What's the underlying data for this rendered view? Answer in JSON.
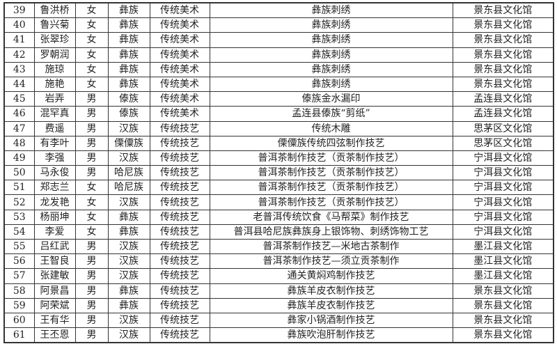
{
  "table": {
    "rows": [
      [
        "39",
        "鲁洪桥",
        "女",
        "彝族",
        "传统美术",
        "彝族刺绣",
        "景东县文化馆"
      ],
      [
        "40",
        "鲁兴菊",
        "女",
        "彝族",
        "传统美术",
        "彝族刺绣",
        "景东县文化馆"
      ],
      [
        "41",
        "张翠珍",
        "女",
        "彝族",
        "传统美术",
        "彝族刺绣",
        "景东县文化馆"
      ],
      [
        "42",
        "罗朝润",
        "女",
        "彝族",
        "传统美术",
        "彝族刺绣",
        "景东县文化馆"
      ],
      [
        "43",
        "施琼",
        "女",
        "彝族",
        "传统美术",
        "彝族刺绣",
        "景东县文化馆"
      ],
      [
        "44",
        "施艳",
        "女",
        "彝族",
        "传统美术",
        "彝族刺绣",
        "景东县文化馆"
      ],
      [
        "45",
        "岩弄",
        "男",
        "傣族",
        "传统美术",
        "傣族金水漏印",
        "孟连县文化馆"
      ],
      [
        "46",
        "混罕真",
        "男",
        "傣族",
        "传统美术",
        "孟连县傣族“剪纸”",
        "孟连县文化馆"
      ],
      [
        "47",
        "费遥",
        "男",
        "汉族",
        "传统技艺",
        "传统木雕",
        "思茅区文化馆"
      ],
      [
        "48",
        "有李叶",
        "男",
        "傈僳族",
        "传统技艺",
        "傈僳族传统四弦制作技艺",
        "思茅区文化馆"
      ],
      [
        "49",
        "李强",
        "男",
        "汉族",
        "传统技艺",
        "普洱茶制作技艺（贡茶制作技艺）",
        "宁洱县文化馆"
      ],
      [
        "50",
        "马永俊",
        "男",
        "哈尼族",
        "传统技艺",
        "普洱茶制作技艺（贡茶制作技艺）",
        "宁洱县文化馆"
      ],
      [
        "51",
        "郑志兰",
        "女",
        "哈尼族",
        "传统技艺",
        "普洱茶制作技艺（贡茶制作技艺）",
        "宁洱县文化馆"
      ],
      [
        "52",
        "龙发艳",
        "女",
        "汉族",
        "传统技艺",
        "普洱茶制作技艺（贡茶制作技艺）",
        "宁洱县文化馆"
      ],
      [
        "53",
        "杨丽坤",
        "女",
        "彝族",
        "传统技艺",
        "老普洱传统饮食《马帮菜》制作技艺",
        "宁洱县文化馆"
      ],
      [
        "54",
        "李爱",
        "女",
        "彝族",
        "传统技艺",
        "普洱县哈尼族彝族身上银饰物、刺绣饰物工艺",
        "宁洱县文化馆"
      ],
      [
        "55",
        "吕红武",
        "男",
        "汉族",
        "传统技艺",
        "普洱茶制作技艺—米地古茶制作",
        "墨江县文化馆"
      ],
      [
        "56",
        "王智良",
        "男",
        "汉族",
        "传统技艺",
        "普洱茶制作技艺—须立贡茶制作",
        "墨江县文化馆"
      ],
      [
        "57",
        "张建敏",
        "男",
        "汉族",
        "传统技艺",
        "通关黄焖鸡制作技艺",
        "墨江县文化馆"
      ],
      [
        "58",
        "阿景昌",
        "男",
        "彝族",
        "传统技艺",
        "彝族羊皮衣制作技艺",
        "景东县文化馆"
      ],
      [
        "59",
        "阿荣斌",
        "男",
        "彝族",
        "传统技艺",
        "彝族羊皮衣制作技艺",
        "景东县文化馆"
      ],
      [
        "60",
        "王有华",
        "男",
        "汉族",
        "传统技艺",
        "彝家小锅酒制作技艺",
        "景东县文化馆"
      ],
      [
        "61",
        "王丕恩",
        "男",
        "汉族",
        "传统技艺",
        "彝族吹泡肝制作技艺",
        "景东县文化馆"
      ]
    ]
  }
}
